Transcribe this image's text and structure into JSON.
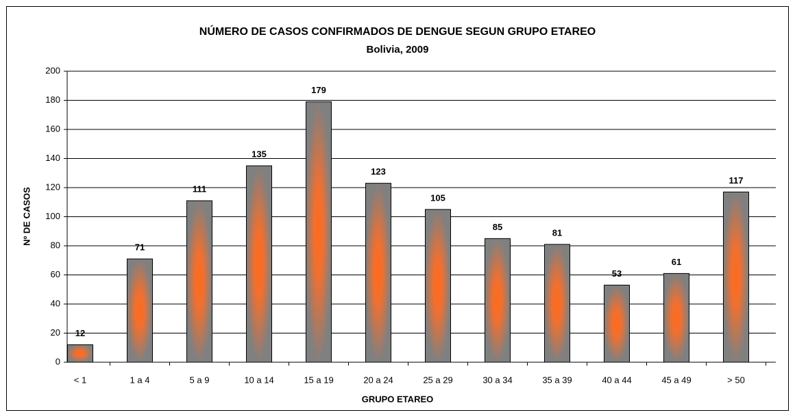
{
  "chart_data": {
    "type": "bar",
    "title": "NÚMERO DE CASOS CONFIRMADOS DE DENGUE SEGUN GRUPO ETAREO",
    "subtitle": "Bolivia, 2009",
    "x_label": "GRUPO ETAREO",
    "y_label": "Nº DE CASOS",
    "categories": [
      "< 1",
      "1 a 4",
      "5 a 9",
      "10 a 14",
      "15 a 19",
      "20 a 24",
      "25 a 29",
      "30 a 34",
      "35 a 39",
      "40 a 44",
      "45 a 49",
      "> 50"
    ],
    "values": [
      12,
      71,
      111,
      135,
      179,
      123,
      105,
      85,
      81,
      53,
      61,
      117
    ],
    "color": "#ff6a1a",
    "ylim": [
      0,
      200
    ],
    "yticks": [
      0,
      20,
      40,
      60,
      80,
      100,
      120,
      140,
      160,
      180,
      200
    ],
    "grid": true
  }
}
